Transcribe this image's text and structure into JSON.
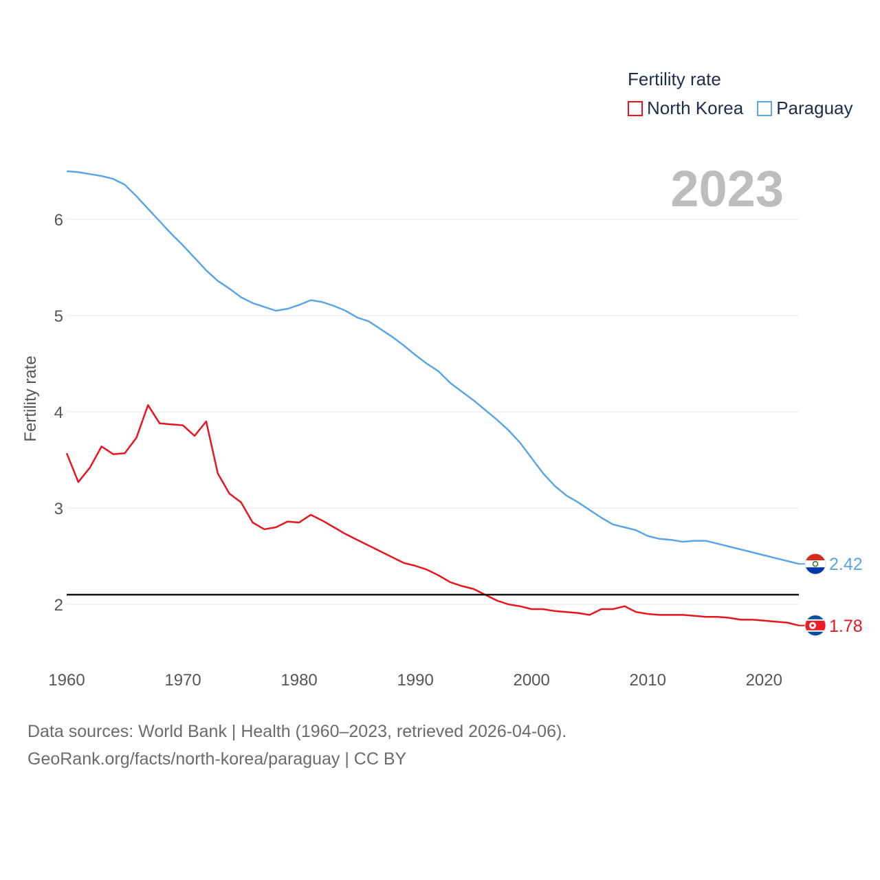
{
  "chart_data": {
    "type": "line",
    "title": "",
    "ylabel": "Fertility rate",
    "xlabel": "",
    "current_year": "2023",
    "xlim": [
      1960,
      2023
    ],
    "ylim": [
      1.5,
      6.7
    ],
    "y_ticks": [
      2,
      3,
      4,
      5,
      6
    ],
    "x_ticks": [
      1960,
      1970,
      1980,
      1990,
      2000,
      2010,
      2020
    ],
    "reference_line": 2.1,
    "legend_title": "Fertility rate",
    "x": [
      1960,
      1961,
      1962,
      1963,
      1964,
      1965,
      1966,
      1967,
      1968,
      1969,
      1970,
      1971,
      1972,
      1973,
      1974,
      1975,
      1976,
      1977,
      1978,
      1979,
      1980,
      1981,
      1982,
      1983,
      1984,
      1985,
      1986,
      1987,
      1988,
      1989,
      1990,
      1991,
      1992,
      1993,
      1994,
      1995,
      1996,
      1997,
      1998,
      1999,
      2000,
      2001,
      2002,
      2003,
      2004,
      2005,
      2006,
      2007,
      2008,
      2009,
      2010,
      2011,
      2012,
      2013,
      2014,
      2015,
      2016,
      2017,
      2018,
      2019,
      2020,
      2021,
      2022,
      2023
    ],
    "series": [
      {
        "name": "North Korea",
        "color": "#e8141e",
        "end_label": "1.78",
        "flag": "north-korea-flag-icon",
        "values": [
          3.57,
          3.27,
          3.42,
          3.64,
          3.56,
          3.57,
          3.73,
          4.07,
          3.88,
          3.87,
          3.86,
          3.75,
          3.9,
          3.36,
          3.15,
          3.06,
          2.85,
          2.78,
          2.8,
          2.86,
          2.85,
          2.93,
          2.87,
          2.8,
          2.73,
          2.67,
          2.61,
          2.55,
          2.49,
          2.43,
          2.4,
          2.36,
          2.3,
          2.23,
          2.19,
          2.16,
          2.1,
          2.04,
          2.0,
          1.98,
          1.95,
          1.95,
          1.93,
          1.92,
          1.91,
          1.89,
          1.95,
          1.95,
          1.98,
          1.92,
          1.9,
          1.89,
          1.89,
          1.89,
          1.88,
          1.87,
          1.87,
          1.86,
          1.84,
          1.84,
          1.83,
          1.82,
          1.81,
          1.78
        ]
      },
      {
        "name": "Paraguay",
        "color": "#5ba4e6",
        "end_label": "2.42",
        "flag": "paraguay-flag-icon",
        "values": [
          6.5,
          6.49,
          6.47,
          6.45,
          6.42,
          6.36,
          6.24,
          6.11,
          5.98,
          5.85,
          5.73,
          5.6,
          5.47,
          5.36,
          5.28,
          5.19,
          5.13,
          5.09,
          5.05,
          5.07,
          5.11,
          5.16,
          5.14,
          5.1,
          5.05,
          4.98,
          4.94,
          4.86,
          4.78,
          4.69,
          4.59,
          4.5,
          4.42,
          4.3,
          4.21,
          4.12,
          4.02,
          3.92,
          3.81,
          3.68,
          3.52,
          3.36,
          3.23,
          3.13,
          3.06,
          2.98,
          2.9,
          2.83,
          2.8,
          2.77,
          2.71,
          2.68,
          2.67,
          2.65,
          2.66,
          2.66,
          2.63,
          2.6,
          2.57,
          2.54,
          2.51,
          2.48,
          2.45,
          2.42
        ]
      }
    ]
  },
  "source": {
    "line1": "Data sources: World Bank | Health (1960–2023, retrieved 2026-04-06).",
    "line2": "GeoRank.org/facts/north-korea/paraguay | CC BY"
  }
}
